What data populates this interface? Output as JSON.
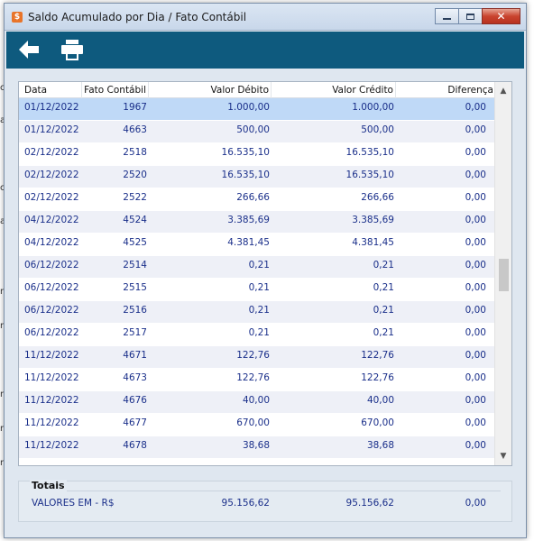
{
  "window": {
    "title": "Saldo Acumulado por Dia / Fato Contábil",
    "icon": "app-icon",
    "colors": {
      "toolbar": "#0e5a7e",
      "text": "#1a2f8a",
      "selected_row": "#bfd9f7"
    }
  },
  "background_fragments": [
    "c",
    "al",
    "ci",
    "al",
    "nt",
    "nt",
    "nt",
    "nt",
    "nt"
  ],
  "toolbar": {
    "back_icon": "arrow-left-icon",
    "print_icon": "printer-icon"
  },
  "grid": {
    "columns": [
      "Data",
      "Fato Contábil",
      "Valor Débito",
      "Valor Crédito",
      "Diferença"
    ],
    "rows": [
      {
        "data": "01/12/2022",
        "fato": "1967",
        "debito": "1.000,00",
        "credito": "1.000,00",
        "diferenca": "0,00",
        "selected": true
      },
      {
        "data": "01/12/2022",
        "fato": "4663",
        "debito": "500,00",
        "credito": "500,00",
        "diferenca": "0,00"
      },
      {
        "data": "02/12/2022",
        "fato": "2518",
        "debito": "16.535,10",
        "credito": "16.535,10",
        "diferenca": "0,00"
      },
      {
        "data": "02/12/2022",
        "fato": "2520",
        "debito": "16.535,10",
        "credito": "16.535,10",
        "diferenca": "0,00"
      },
      {
        "data": "02/12/2022",
        "fato": "2522",
        "debito": "266,66",
        "credito": "266,66",
        "diferenca": "0,00"
      },
      {
        "data": "04/12/2022",
        "fato": "4524",
        "debito": "3.385,69",
        "credito": "3.385,69",
        "diferenca": "0,00"
      },
      {
        "data": "04/12/2022",
        "fato": "4525",
        "debito": "4.381,45",
        "credito": "4.381,45",
        "diferenca": "0,00"
      },
      {
        "data": "06/12/2022",
        "fato": "2514",
        "debito": "0,21",
        "credito": "0,21",
        "diferenca": "0,00"
      },
      {
        "data": "06/12/2022",
        "fato": "2515",
        "debito": "0,21",
        "credito": "0,21",
        "diferenca": "0,00"
      },
      {
        "data": "06/12/2022",
        "fato": "2516",
        "debito": "0,21",
        "credito": "0,21",
        "diferenca": "0,00"
      },
      {
        "data": "06/12/2022",
        "fato": "2517",
        "debito": "0,21",
        "credito": "0,21",
        "diferenca": "0,00"
      },
      {
        "data": "11/12/2022",
        "fato": "4671",
        "debito": "122,76",
        "credito": "122,76",
        "diferenca": "0,00"
      },
      {
        "data": "11/12/2022",
        "fato": "4673",
        "debito": "122,76",
        "credito": "122,76",
        "diferenca": "0,00"
      },
      {
        "data": "11/12/2022",
        "fato": "4676",
        "debito": "40,00",
        "credito": "40,00",
        "diferenca": "0,00"
      },
      {
        "data": "11/12/2022",
        "fato": "4677",
        "debito": "670,00",
        "credito": "670,00",
        "diferenca": "0,00"
      },
      {
        "data": "11/12/2022",
        "fato": "4678",
        "debito": "38,68",
        "credito": "38,68",
        "diferenca": "0,00"
      }
    ]
  },
  "totais": {
    "title": "Totais",
    "label": "VALORES EM - R$",
    "debito": "95.156,62",
    "credito": "95.156,62",
    "diferenca": "0,00"
  }
}
